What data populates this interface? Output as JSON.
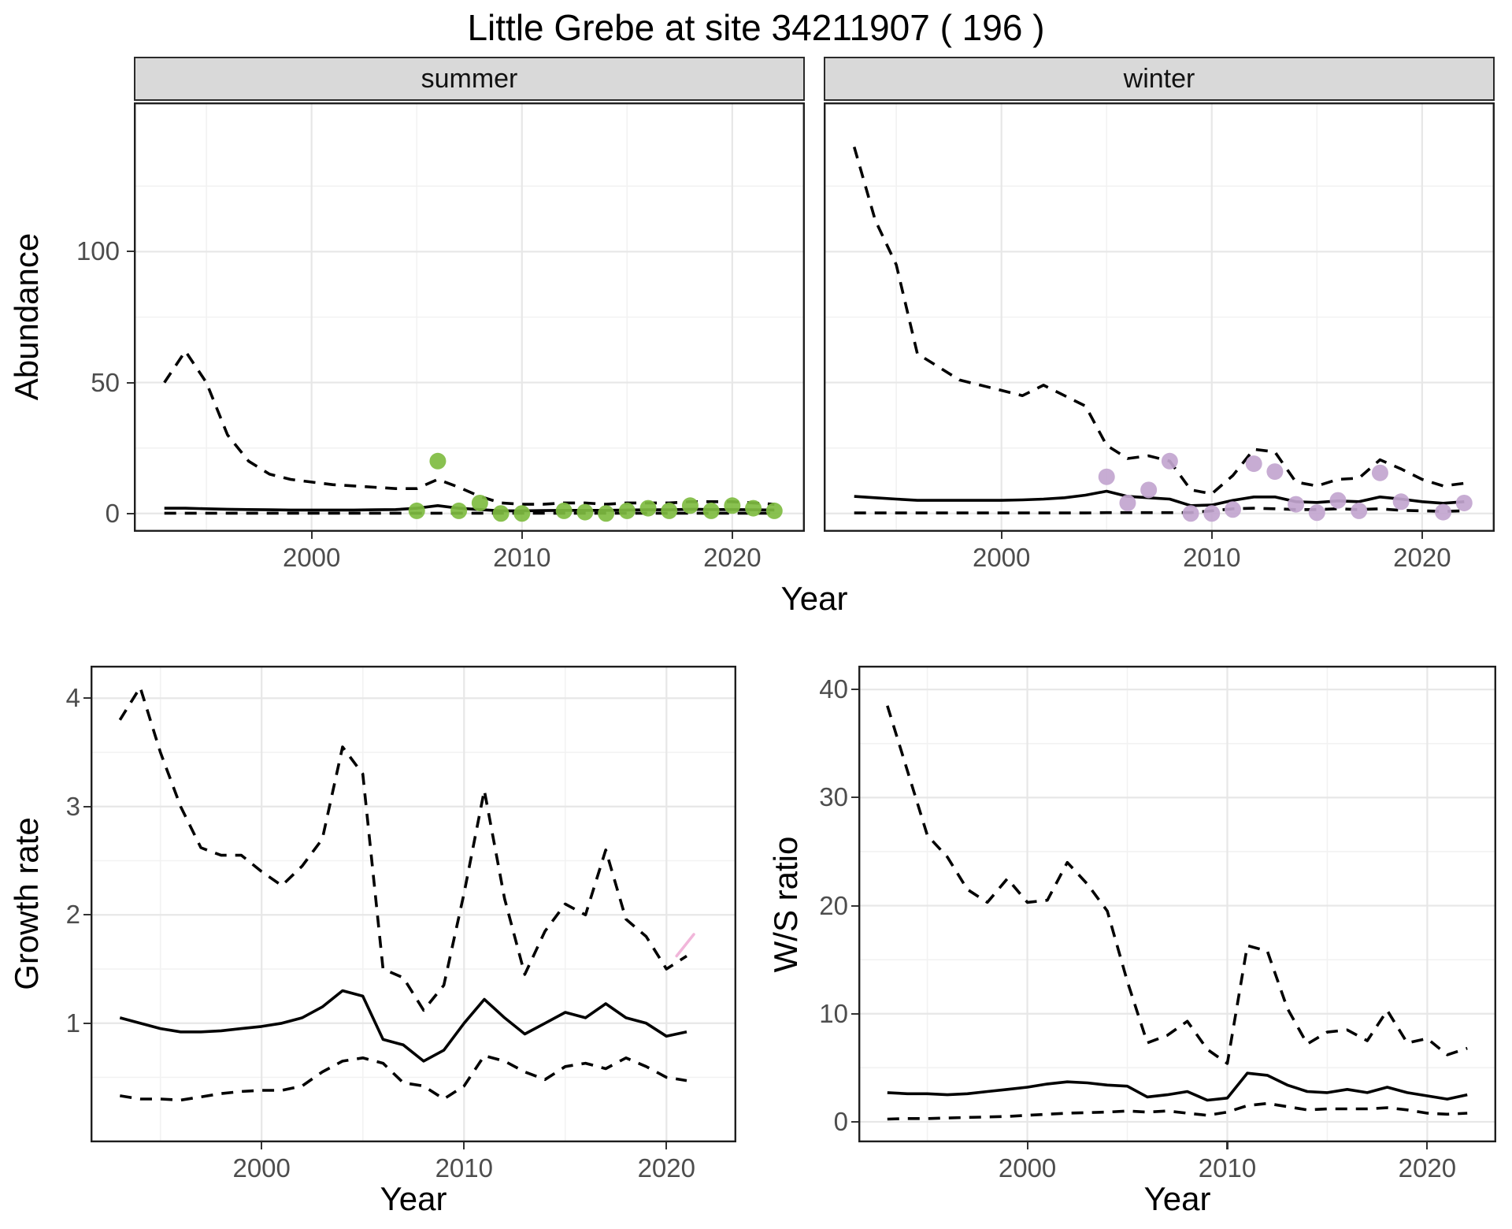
{
  "title": "Little Grebe at site 34211907 ( 196 )",
  "colors": {
    "line": "#000000",
    "point_green": "#7FBC41",
    "point_purple": "#C2A5CF",
    "pink_mark": "#F1B6DA",
    "strip_bg": "#D9D9D9",
    "strip_border": "#2A2A2A",
    "panel_border": "#1F1F1F",
    "grid_major": "#E7E7E7",
    "grid_minor": "#F2F2F2",
    "tick_color": "#333333",
    "tick_label": "#4D4D4D"
  },
  "chart_data": [
    {
      "id": "abundance_summer",
      "type": "line",
      "facet": "summer",
      "ylabel": "Abundance",
      "xlabel": "Year",
      "xlim": [
        1991.55,
        2023.45
      ],
      "ylim": [
        -7,
        157
      ],
      "xticks": [
        2000,
        2010,
        2020
      ],
      "xminor": [
        1995,
        2005,
        2015
      ],
      "yticks": [
        0,
        50,
        100
      ],
      "yminor": [
        25,
        75,
        125
      ],
      "years": [
        1993,
        1994,
        1995,
        1996,
        1997,
        1998,
        1999,
        2000,
        2001,
        2002,
        2003,
        2004,
        2005,
        2006,
        2007,
        2008,
        2009,
        2010,
        2011,
        2012,
        2013,
        2014,
        2015,
        2016,
        2017,
        2018,
        2019,
        2020,
        2021,
        2022
      ],
      "series": [
        {
          "name": "upper-ci",
          "style": "dashed",
          "values": [
            50,
            62,
            50,
            30,
            20,
            15,
            13,
            12,
            11,
            10.5,
            10,
            9.5,
            9.5,
            13,
            10,
            6.5,
            4,
            3.5,
            3.5,
            4,
            4,
            3.5,
            4,
            4,
            4,
            4.5,
            4.5,
            4.5,
            4,
            3.5
          ]
        },
        {
          "name": "mean",
          "style": "solid",
          "values": [
            2,
            2,
            1.8,
            1.6,
            1.5,
            1.4,
            1.3,
            1.3,
            1.3,
            1.3,
            1.4,
            1.5,
            2,
            3,
            2,
            1.5,
            1,
            1,
            1.1,
            1.2,
            1.2,
            1.2,
            1.3,
            1.4,
            1.4,
            1.6,
            1.5,
            1.5,
            1.4,
            1.3
          ]
        },
        {
          "name": "lower-ci",
          "style": "dashed",
          "values": [
            0.1,
            0.1,
            0.1,
            0.1,
            0.1,
            0.1,
            0.1,
            0.1,
            0.1,
            0.1,
            0.1,
            0.1,
            0.1,
            0.1,
            0.1,
            0.1,
            0.1,
            0.1,
            0.1,
            0.1,
            0.1,
            0.1,
            0.1,
            0.1,
            0.1,
            0.1,
            0.1,
            0.1,
            0.1,
            0.1
          ]
        }
      ],
      "points": {
        "color": "point_green",
        "years": [
          2005,
          2006,
          2007,
          2008,
          2009,
          2010,
          2012,
          2013,
          2014,
          2015,
          2016,
          2017,
          2018,
          2019,
          2020,
          2021,
          2022
        ],
        "values": [
          1,
          20,
          1,
          4,
          0,
          0,
          1,
          0.5,
          0,
          1,
          2,
          1,
          3,
          1,
          3,
          2,
          1
        ]
      }
    },
    {
      "id": "abundance_winter",
      "type": "line",
      "facet": "winter",
      "ylabel": "Abundance",
      "xlabel": "Year",
      "xlim": [
        1991.55,
        2023.45
      ],
      "ylim": [
        -7,
        157
      ],
      "xticks": [
        2000,
        2010,
        2020
      ],
      "xminor": [
        1995,
        2005,
        2015
      ],
      "yticks": [
        0,
        50,
        100
      ],
      "yminor": [
        25,
        75,
        125
      ],
      "years": [
        1993,
        1994,
        1995,
        1996,
        1997,
        1998,
        1999,
        2000,
        2001,
        2002,
        2003,
        2004,
        2005,
        2006,
        2007,
        2008,
        2009,
        2010,
        2011,
        2012,
        2013,
        2014,
        2015,
        2016,
        2017,
        2018,
        2019,
        2020,
        2021,
        2022
      ],
      "series": [
        {
          "name": "upper-ci",
          "style": "dashed",
          "values": [
            140,
            112,
            95,
            61,
            56,
            51,
            49,
            47,
            45,
            49,
            45,
            41,
            26,
            21,
            22,
            20,
            9,
            7.5,
            14.5,
            24.5,
            23.5,
            12,
            10.5,
            13,
            13.5,
            20.5,
            17,
            13,
            10.5,
            11.5
          ]
        },
        {
          "name": "mean",
          "style": "solid",
          "values": [
            6.5,
            6,
            5.5,
            5,
            5,
            5,
            5,
            5,
            5.2,
            5.5,
            6,
            7,
            8.5,
            6.5,
            6,
            5.5,
            3,
            3.2,
            5,
            6.3,
            6.3,
            4.5,
            4.2,
            4.8,
            4.5,
            6.3,
            5.5,
            4.5,
            3.9,
            4.5
          ]
        },
        {
          "name": "lower-ci",
          "style": "dashed",
          "values": [
            0.2,
            0.2,
            0.2,
            0.2,
            0.2,
            0.2,
            0.2,
            0.2,
            0.2,
            0.2,
            0.2,
            0.2,
            0.3,
            0.3,
            0.3,
            0.3,
            0.3,
            1,
            1.8,
            2,
            1.8,
            1.5,
            1.5,
            1.8,
            1.5,
            1.8,
            1.2,
            1,
            0.8,
            1
          ]
        }
      ],
      "points": {
        "color": "point_purple",
        "years": [
          2005,
          2006,
          2007,
          2008,
          2009,
          2010,
          2011,
          2012,
          2013,
          2014,
          2015,
          2016,
          2017,
          2018,
          2019,
          2021,
          2022
        ],
        "values": [
          14,
          4,
          9,
          20,
          0,
          0,
          1.5,
          19,
          16,
          3.5,
          0.3,
          5,
          1,
          15.5,
          4.5,
          0.5,
          4
        ]
      }
    },
    {
      "id": "growth_rate",
      "type": "line",
      "facet": null,
      "ylabel": "Growth rate",
      "xlabel": "Year",
      "xlim": [
        1991.55,
        2023.45
      ],
      "ylim": [
        -0.1,
        4.3
      ],
      "xticks": [
        2000,
        2010,
        2020
      ],
      "xminor": [
        1995,
        2005,
        2015
      ],
      "yticks": [
        1,
        2,
        3,
        4
      ],
      "yminor": [
        0.5,
        1.5,
        2.5,
        3.5
      ],
      "years": [
        1993,
        1994,
        1995,
        1996,
        1997,
        1998,
        1999,
        2000,
        2001,
        2002,
        2003,
        2004,
        2005,
        2006,
        2007,
        2008,
        2009,
        2010,
        2011,
        2012,
        2013,
        2014,
        2015,
        2016,
        2017,
        2018,
        2019,
        2020,
        2021
      ],
      "series": [
        {
          "name": "upper-ci",
          "style": "dashed",
          "values": [
            3.8,
            4.1,
            3.5,
            3.0,
            2.62,
            2.55,
            2.55,
            2.4,
            2.27,
            2.45,
            2.7,
            3.55,
            3.3,
            1.5,
            1.42,
            1.12,
            1.35,
            2.2,
            3.15,
            2.15,
            1.45,
            1.85,
            2.1,
            2.0,
            2.6,
            1.96,
            1.8,
            1.5,
            1.62
          ]
        },
        {
          "name": "mean",
          "style": "solid",
          "values": [
            1.05,
            1.0,
            0.95,
            0.92,
            0.92,
            0.93,
            0.95,
            0.97,
            1.0,
            1.05,
            1.15,
            1.3,
            1.25,
            0.85,
            0.8,
            0.65,
            0.75,
            1.0,
            1.22,
            1.05,
            0.9,
            1.0,
            1.1,
            1.05,
            1.18,
            1.05,
            1.0,
            0.88,
            0.92
          ]
        },
        {
          "name": "lower-ci",
          "style": "dashed",
          "values": [
            0.33,
            0.3,
            0.3,
            0.29,
            0.32,
            0.35,
            0.37,
            0.38,
            0.38,
            0.42,
            0.55,
            0.65,
            0.68,
            0.63,
            0.45,
            0.42,
            0.3,
            0.42,
            0.7,
            0.65,
            0.55,
            0.48,
            0.6,
            0.63,
            0.58,
            0.68,
            0.6,
            0.5,
            0.47
          ]
        }
      ],
      "extra": [
        {
          "type": "segment",
          "x1": 2020.5,
          "y1": 1.62,
          "x2": 2021.35,
          "y2": 1.82,
          "color": "pink_mark",
          "width": 3.5
        }
      ]
    },
    {
      "id": "ws_ratio",
      "type": "line",
      "facet": null,
      "ylabel": "W/S ratio",
      "xlabel": "Year",
      "xlim": [
        1991.55,
        2023.45
      ],
      "ylim": [
        -1.9,
        42.2
      ],
      "xticks": [
        2000,
        2010,
        2020
      ],
      "xminor": [
        1995,
        2005,
        2015
      ],
      "yticks": [
        0,
        10,
        20,
        30,
        40
      ],
      "yminor": [
        5,
        15,
        25,
        35
      ],
      "years": [
        1993,
        1994,
        1995,
        1996,
        1997,
        1998,
        1999,
        2000,
        2001,
        2002,
        2003,
        2004,
        2005,
        2006,
        2007,
        2008,
        2009,
        2010,
        2011,
        2012,
        2013,
        2014,
        2015,
        2016,
        2017,
        2018,
        2019,
        2020,
        2021,
        2022
      ],
      "series": [
        {
          "name": "upper-ci",
          "style": "dashed",
          "values": [
            38.5,
            32.5,
            26.5,
            24.5,
            21.5,
            20.3,
            22.5,
            20.3,
            20.5,
            24,
            22,
            19.5,
            13,
            7.3,
            8,
            9.3,
            6.7,
            5.4,
            16.3,
            15.8,
            10.5,
            7.2,
            8.3,
            8.5,
            7.5,
            10.3,
            7.3,
            7.7,
            6.2,
            6.8
          ]
        },
        {
          "name": "mean",
          "style": "solid",
          "values": [
            2.7,
            2.6,
            2.6,
            2.5,
            2.6,
            2.8,
            3.0,
            3.2,
            3.5,
            3.7,
            3.6,
            3.4,
            3.3,
            2.3,
            2.5,
            2.8,
            2.0,
            2.2,
            4.5,
            4.3,
            3.4,
            2.8,
            2.7,
            3.0,
            2.7,
            3.2,
            2.7,
            2.4,
            2.1,
            2.5
          ]
        },
        {
          "name": "lower-ci",
          "style": "dashed",
          "values": [
            0.25,
            0.3,
            0.3,
            0.35,
            0.4,
            0.45,
            0.5,
            0.6,
            0.7,
            0.8,
            0.85,
            0.9,
            1.0,
            0.9,
            1.0,
            0.8,
            0.6,
            0.9,
            1.5,
            1.7,
            1.4,
            1.1,
            1.2,
            1.2,
            1.2,
            1.3,
            1.1,
            0.8,
            0.7,
            0.8
          ]
        }
      ]
    }
  ]
}
